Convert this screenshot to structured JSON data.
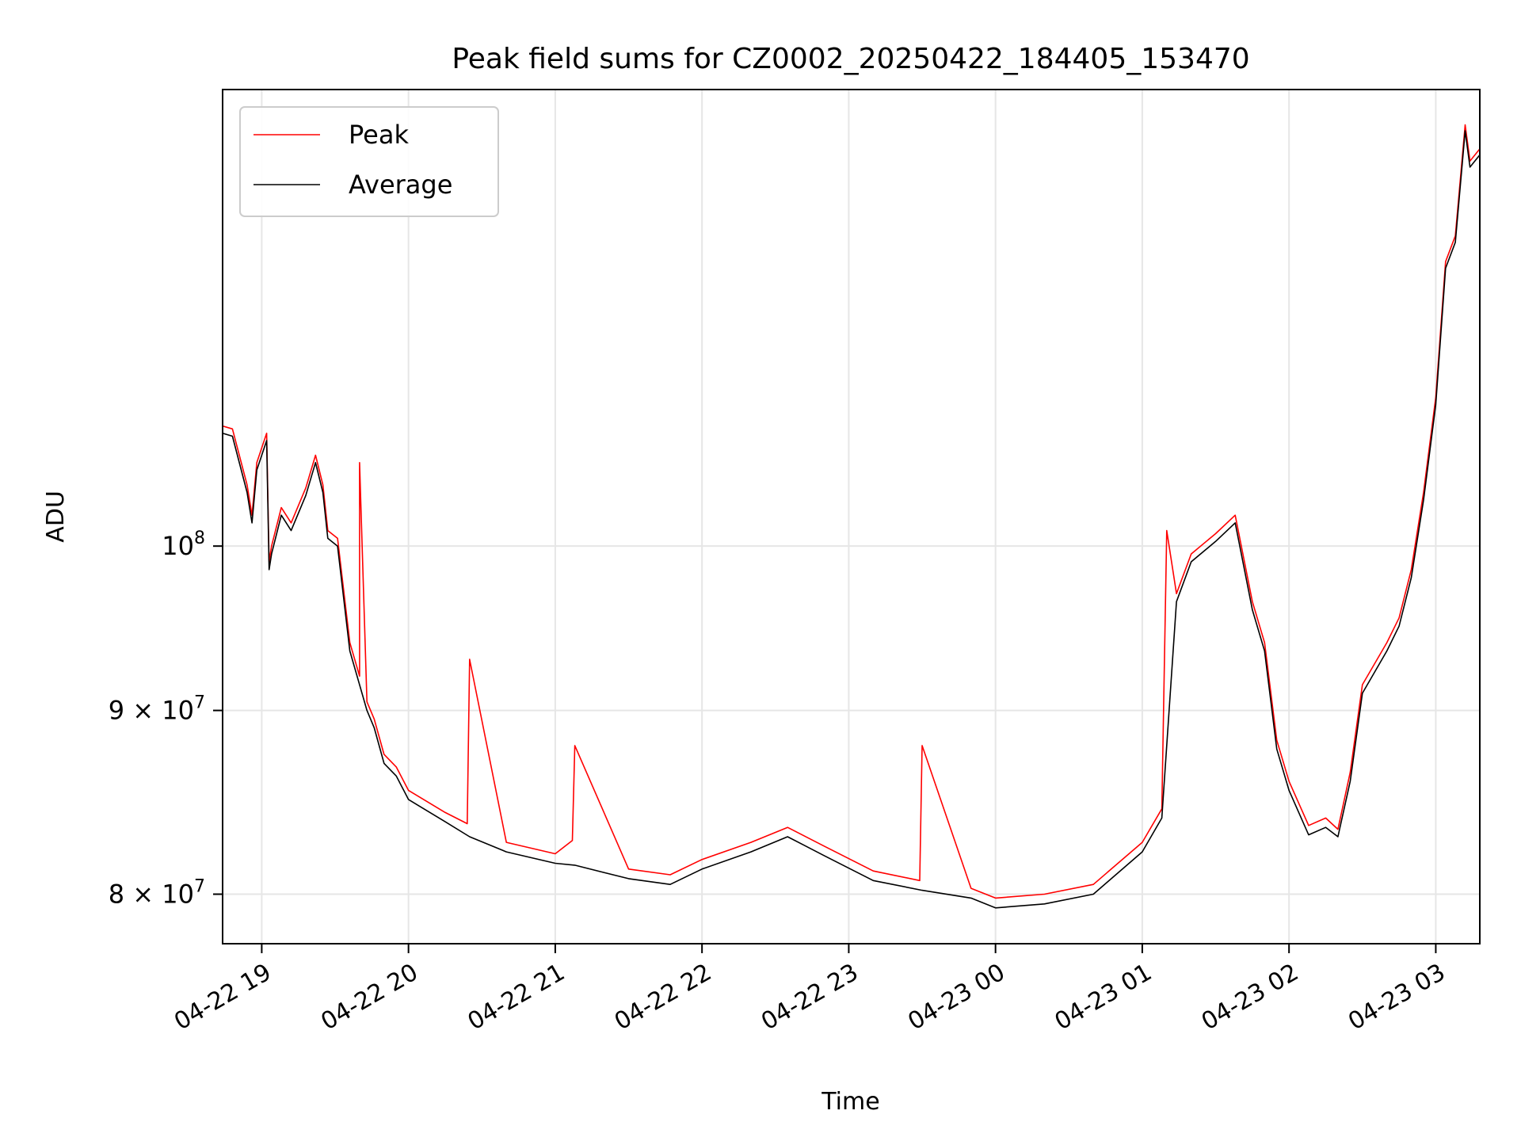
{
  "chart_data": {
    "type": "line",
    "title": "Peak field sums for CZ0002_20250422_184405_153470",
    "xlabel": "Time",
    "ylabel": "ADU",
    "x_type": "datetime",
    "xlim": [
      "2025-04-22 18:44",
      "2025-04-23 03:18"
    ],
    "ylim": [
      77500000,
      134000000
    ],
    "y_scale": "log",
    "grid": true,
    "legend_position": "top-left",
    "x_ticks": [
      {
        "value": "2025-04-22 19:00",
        "label": "04-22 19"
      },
      {
        "value": "2025-04-22 20:00",
        "label": "04-22 20"
      },
      {
        "value": "2025-04-22 21:00",
        "label": "04-22 21"
      },
      {
        "value": "2025-04-22 22:00",
        "label": "04-22 22"
      },
      {
        "value": "2025-04-22 23:00",
        "label": "04-22 23"
      },
      {
        "value": "2025-04-23 00:00",
        "label": "04-23 00"
      },
      {
        "value": "2025-04-23 01:00",
        "label": "04-23 01"
      },
      {
        "value": "2025-04-23 02:00",
        "label": "04-23 02"
      },
      {
        "value": "2025-04-23 03:00",
        "label": "04-23 03"
      }
    ],
    "y_ticks": [
      {
        "value": 80000000,
        "mantissa": "8",
        "base": "10",
        "exp": "7"
      },
      {
        "value": 90000000,
        "mantissa": "9",
        "base": "10",
        "exp": "7"
      },
      {
        "value": 100000000,
        "mantissa": "",
        "base": "10",
        "exp": "8"
      }
    ],
    "series": [
      {
        "name": "Peak",
        "color": "#ff0000",
        "x": [
          "2025-04-22 18:44",
          "2025-04-22 18:48",
          "2025-04-22 18:54",
          "2025-04-22 18:56",
          "2025-04-22 18:58",
          "2025-04-22 19:02",
          "2025-04-22 19:03",
          "2025-04-22 19:04",
          "2025-04-22 19:08",
          "2025-04-22 19:12",
          "2025-04-22 19:18",
          "2025-04-22 19:22",
          "2025-04-22 19:25",
          "2025-04-22 19:27",
          "2025-04-22 19:31",
          "2025-04-22 19:36",
          "2025-04-22 19:40",
          "2025-04-22 19:40",
          "2025-04-22 19:43",
          "2025-04-22 19:46",
          "2025-04-22 19:50",
          "2025-04-22 19:55",
          "2025-04-22 20:00",
          "2025-04-22 20:15",
          "2025-04-22 20:24",
          "2025-04-22 20:25",
          "2025-04-22 20:40",
          "2025-04-22 21:00",
          "2025-04-22 21:07",
          "2025-04-22 21:08",
          "2025-04-22 21:30",
          "2025-04-22 21:47",
          "2025-04-22 22:00",
          "2025-04-22 22:20",
          "2025-04-22 22:35",
          "2025-04-22 22:50",
          "2025-04-22 23:10",
          "2025-04-22 23:29",
          "2025-04-22 23:30",
          "2025-04-22 23:50",
          "2025-04-23 00:00",
          "2025-04-23 00:20",
          "2025-04-23 00:40",
          "2025-04-23 01:00",
          "2025-04-23 01:08",
          "2025-04-23 01:10",
          "2025-04-23 01:14",
          "2025-04-23 01:20",
          "2025-04-23 01:30",
          "2025-04-23 01:38",
          "2025-04-23 01:45",
          "2025-04-23 01:50",
          "2025-04-23 01:55",
          "2025-04-23 02:00",
          "2025-04-23 02:08",
          "2025-04-23 02:15",
          "2025-04-23 02:20",
          "2025-04-23 02:25",
          "2025-04-23 02:30",
          "2025-04-23 02:40",
          "2025-04-23 02:45",
          "2025-04-23 02:50",
          "2025-04-23 02:55",
          "2025-04-23 03:00",
          "2025-04-23 03:04",
          "2025-04-23 03:08",
          "2025-04-23 03:12",
          "2025-04-23 03:14",
          "2025-04-23 03:18"
        ],
        "y": [
          108000000,
          107800000,
          104000000,
          102000000,
          105500000,
          107500000,
          99000000,
          100000000,
          102500000,
          101500000,
          103800000,
          106000000,
          104000000,
          101000000,
          100500000,
          94000000,
          92000000,
          105500000,
          90500000,
          89500000,
          87500000,
          86800000,
          85500000,
          84300000,
          83700000,
          93000000,
          82700000,
          82100000,
          82800000,
          88000000,
          81300000,
          81000000,
          81800000,
          82700000,
          83500000,
          82500000,
          81200000,
          80700000,
          88000000,
          80300000,
          79800000,
          80000000,
          80500000,
          82700000,
          84500000,
          101000000,
          97000000,
          99500000,
          100800000,
          102000000,
          96500000,
          94000000,
          88300000,
          86000000,
          83600000,
          84000000,
          83400000,
          86500000,
          91500000,
          94000000,
          95500000,
          98500000,
          103500000,
          110000000,
          120000000,
          122000000,
          131000000,
          128000000,
          129000000
        ]
      },
      {
        "name": "Average",
        "color": "#000000",
        "x": [
          "2025-04-22 18:44",
          "2025-04-22 18:48",
          "2025-04-22 18:54",
          "2025-04-22 18:56",
          "2025-04-22 18:58",
          "2025-04-22 19:02",
          "2025-04-22 19:03",
          "2025-04-22 19:04",
          "2025-04-22 19:08",
          "2025-04-22 19:12",
          "2025-04-22 19:18",
          "2025-04-22 19:22",
          "2025-04-22 19:25",
          "2025-04-22 19:27",
          "2025-04-22 19:31",
          "2025-04-22 19:36",
          "2025-04-22 19:43",
          "2025-04-22 19:46",
          "2025-04-22 19:50",
          "2025-04-22 19:55",
          "2025-04-22 20:00",
          "2025-04-22 20:15",
          "2025-04-22 20:25",
          "2025-04-22 20:40",
          "2025-04-22 21:00",
          "2025-04-22 21:08",
          "2025-04-22 21:30",
          "2025-04-22 21:47",
          "2025-04-22 22:00",
          "2025-04-22 22:20",
          "2025-04-22 22:35",
          "2025-04-22 22:50",
          "2025-04-22 23:10",
          "2025-04-22 23:30",
          "2025-04-22 23:50",
          "2025-04-23 00:00",
          "2025-04-23 00:20",
          "2025-04-23 00:40",
          "2025-04-23 01:00",
          "2025-04-23 01:08",
          "2025-04-23 01:14",
          "2025-04-23 01:20",
          "2025-04-23 01:30",
          "2025-04-23 01:38",
          "2025-04-23 01:45",
          "2025-04-23 01:50",
          "2025-04-23 01:55",
          "2025-04-23 02:00",
          "2025-04-23 02:08",
          "2025-04-23 02:15",
          "2025-04-23 02:20",
          "2025-04-23 02:25",
          "2025-04-23 02:30",
          "2025-04-23 02:40",
          "2025-04-23 02:45",
          "2025-04-23 02:50",
          "2025-04-23 02:55",
          "2025-04-23 03:00",
          "2025-04-23 03:04",
          "2025-04-23 03:08",
          "2025-04-23 03:12",
          "2025-04-23 03:14",
          "2025-04-23 03:18"
        ],
        "y": [
          107500000,
          107300000,
          103500000,
          101500000,
          105000000,
          107000000,
          98500000,
          99500000,
          102000000,
          101000000,
          103300000,
          105500000,
          103500000,
          100500000,
          100000000,
          93500000,
          90000000,
          89000000,
          87000000,
          86300000,
          85000000,
          83800000,
          83000000,
          82200000,
          81600000,
          81500000,
          80800000,
          80500000,
          81300000,
          82200000,
          83000000,
          82000000,
          80700000,
          80200000,
          79800000,
          79300000,
          79500000,
          80000000,
          82200000,
          84000000,
          96500000,
          99000000,
          100300000,
          101500000,
          96000000,
          93500000,
          87800000,
          85500000,
          83100000,
          83500000,
          83000000,
          86000000,
          91000000,
          93500000,
          95000000,
          98000000,
          103000000,
          109500000,
          119500000,
          121500000,
          130500000,
          127500000,
          128500000
        ]
      }
    ]
  }
}
